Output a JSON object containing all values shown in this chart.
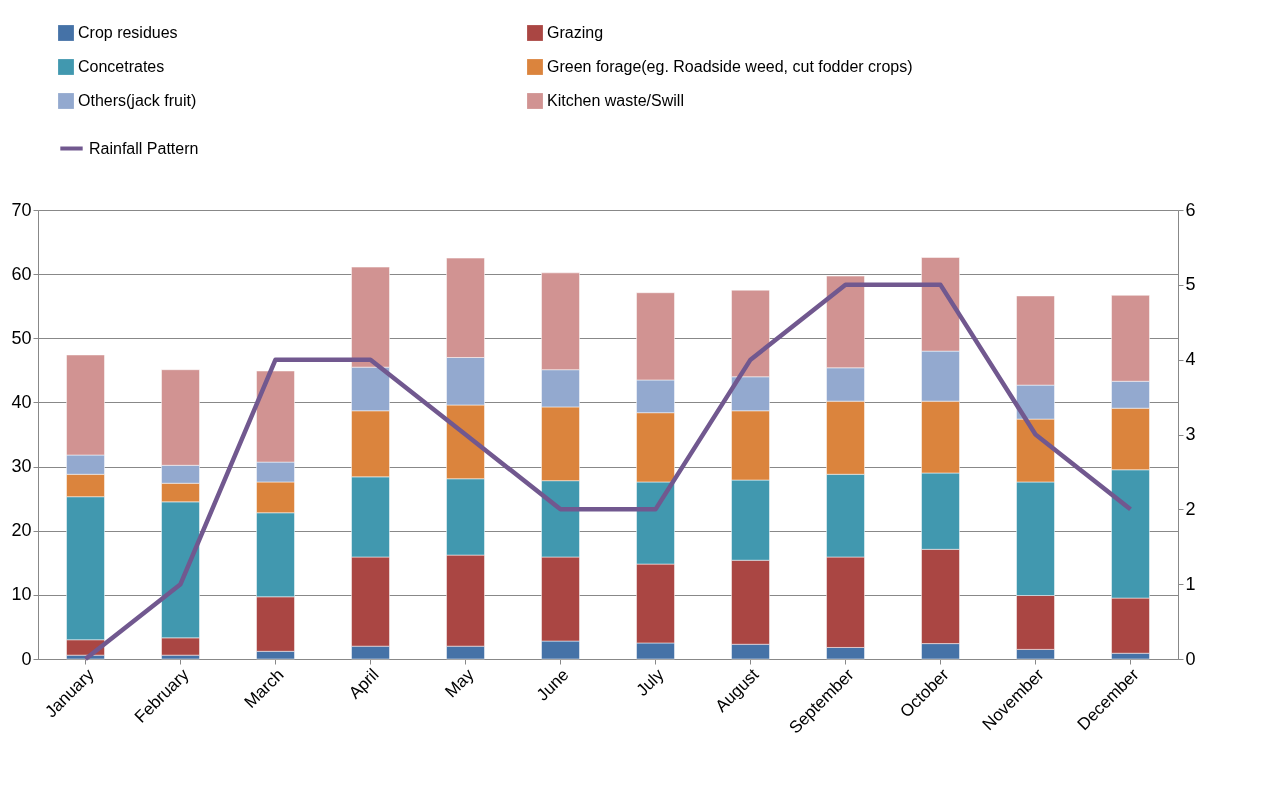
{
  "chart_data": {
    "type": "bar",
    "stacked": true,
    "categories": [
      "January",
      "February",
      "March",
      "April",
      "May",
      "June",
      "July",
      "August",
      "September",
      "October",
      "November",
      "December"
    ],
    "series": [
      {
        "name": "Crop residues",
        "color": "#4572a7",
        "values": [
          0.6,
          0.6,
          1.2,
          2.0,
          2.0,
          2.8,
          2.5,
          2.3,
          1.8,
          2.4,
          1.5,
          0.9
        ]
      },
      {
        "name": "Grazing",
        "color": "#aa4643",
        "values": [
          2.4,
          2.7,
          8.5,
          13.9,
          14.2,
          13.1,
          12.3,
          13.1,
          14.1,
          14.7,
          8.4,
          8.6
        ]
      },
      {
        "name": "Concetrates",
        "color": "#4198af",
        "values": [
          22.3,
          21.2,
          13.1,
          12.5,
          11.9,
          11.9,
          12.8,
          12.5,
          12.9,
          11.9,
          17.7,
          20.0
        ]
      },
      {
        "name": "Green forage(eg. Roadside weed, cut fodder crops)",
        "color": "#db843d",
        "values": [
          3.5,
          2.9,
          4.8,
          10.3,
          11.5,
          11.5,
          10.8,
          10.8,
          11.4,
          11.2,
          9.8,
          9.6
        ]
      },
      {
        "name": "Others(jack fruit)",
        "color": "#93a9cf",
        "values": [
          3.0,
          2.8,
          3.1,
          6.8,
          7.4,
          5.8,
          5.1,
          5.3,
          5.2,
          7.8,
          5.3,
          4.2
        ]
      },
      {
        "name": "Kitchen waste/Swill",
        "color": "#d19392",
        "values": [
          15.6,
          14.9,
          14.2,
          15.6,
          15.5,
          15.1,
          13.6,
          13.5,
          14.3,
          14.6,
          13.9,
          13.4
        ]
      },
      {
        "name": "Rainfall Pattern",
        "color": "#71588f",
        "type": "line",
        "axis": "y2",
        "values": [
          0,
          1,
          4,
          4,
          3,
          2,
          2,
          4,
          5,
          5,
          3,
          2
        ]
      }
    ],
    "ylim": [
      0,
      70
    ],
    "yticks": [
      0,
      10,
      20,
      30,
      40,
      50,
      60,
      70
    ],
    "y2lim": [
      0,
      6
    ],
    "y2ticks": [
      0,
      1,
      2,
      3,
      4,
      5,
      6
    ],
    "grid": "y",
    "legend": "top",
    "marker": "none",
    "line_style": "solid"
  }
}
